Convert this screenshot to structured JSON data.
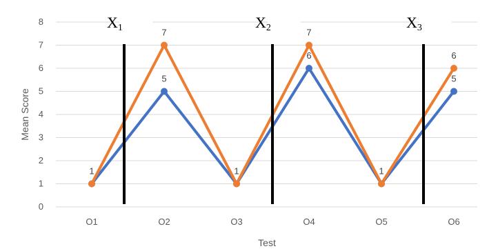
{
  "chart_data": {
    "type": "line",
    "title": "",
    "xlabel": "Test",
    "ylabel": "Mean Score",
    "categories": [
      "O1",
      "O2",
      "O3",
      "O4",
      "O5",
      "O6"
    ],
    "ylim": [
      0,
      8
    ],
    "yticks": [
      0,
      1,
      2,
      3,
      4,
      5,
      6,
      7,
      8
    ],
    "grid": true,
    "legend": "none",
    "series": [
      {
        "values": [
          1,
          5,
          1,
          6,
          1,
          5
        ],
        "color": "#4472C4",
        "data_labels": [
          "",
          "5",
          "",
          "6",
          "",
          "5"
        ]
      },
      {
        "values": [
          1,
          7,
          1,
          7,
          1,
          6
        ],
        "color": "#ED7D31",
        "data_labels": [
          "1",
          "7",
          "1",
          "7",
          "1",
          "6"
        ]
      }
    ],
    "annotations": [
      {
        "label": "X",
        "sub": "1",
        "between": [
          "O1",
          "O2"
        ]
      },
      {
        "label": "X",
        "sub": "2",
        "between": [
          "O3",
          "O4"
        ]
      },
      {
        "label": "X",
        "sub": "3",
        "between": [
          "O5",
          "O6"
        ]
      }
    ]
  }
}
